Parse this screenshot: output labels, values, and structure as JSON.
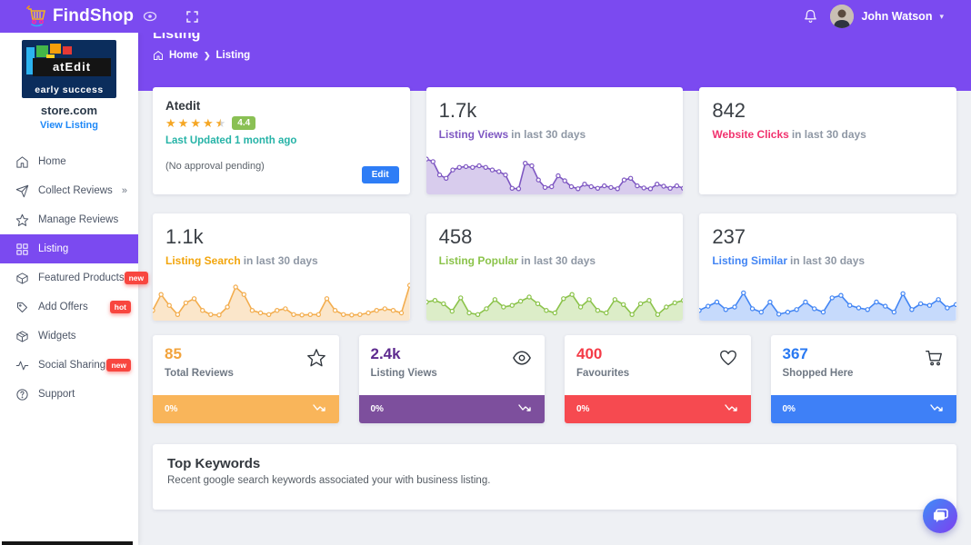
{
  "theme": {
    "primary": "#7b4af0",
    "background": "#eef0f4",
    "badge_red": "#f8463f",
    "link_blue": "#1e88f7",
    "teal": "#26b3a7",
    "rating_green": "#8ac054",
    "star_gold": "#f5a623",
    "edit_blue": "#2e7df6"
  },
  "navbar": {
    "brand": "FindShop",
    "user_name": "John Watson"
  },
  "page": {
    "title": "Listing",
    "breadcrumb_home": "Home",
    "breadcrumb_current": "Listing"
  },
  "sidebar": {
    "logo_text": "atEdit",
    "logo_subtext": "early success",
    "store_name": "store.com",
    "view_listing_label": "View Listing",
    "items": [
      {
        "label": "Home"
      },
      {
        "label": "Collect Reviews",
        "chevron": "»"
      },
      {
        "label": "Manage Reviews"
      },
      {
        "label": "Listing",
        "active": true
      },
      {
        "label": "Featured Products",
        "badge": "new"
      },
      {
        "label": "Add Offers",
        "badge": "hot"
      },
      {
        "label": "Widgets"
      },
      {
        "label": "Social Sharing",
        "badge": "new"
      },
      {
        "label": "Support"
      }
    ]
  },
  "listing_card": {
    "title": "Atedit",
    "rating": "4.4",
    "updated_text": "Last Updated 1 month ago",
    "approval_text": "(No approval pending)",
    "edit_label": "Edit"
  },
  "overview_cards": [
    {
      "value": "1.7k",
      "label": "Listing Views",
      "suffix": "in last 30 days",
      "color": "#7e57c2"
    },
    {
      "value": "842",
      "label": "Website Clicks",
      "suffix": "in last 30 days",
      "color": "#f1326e"
    },
    {
      "value": "1.1k",
      "label": "Listing Search",
      "suffix": "in last 30 days",
      "color": "#f2a50c"
    },
    {
      "value": "458",
      "label": "Listing Popular",
      "suffix": "in last 30 days",
      "color": "#8bc34a"
    },
    {
      "value": "237",
      "label": "Listing Similar",
      "suffix": "in last 30 days",
      "color": "#4285f4"
    }
  ],
  "chart_data": [
    {
      "id": "listing-views-spark",
      "type": "area",
      "title": "Listing Views in last 30 days",
      "color": "#7e57c2",
      "ylim": [
        0,
        10
      ],
      "grid": false,
      "markers": true,
      "values": [
        7.8,
        7.2,
        4,
        3.2,
        5.2,
        5.8,
        6,
        5.8,
        6.2,
        5.8,
        5.2,
        4.8,
        4,
        0.8,
        0.7,
        6.8,
        6.2,
        2.8,
        1,
        1.2,
        3.8,
        2.6,
        1.2,
        0.7,
        1.8,
        1.2,
        0.8,
        1.4,
        1,
        0.7,
        2.8,
        3.2,
        1.4,
        0.9,
        0.7,
        1.8,
        1.3,
        0.8,
        1.4,
        0.8
      ]
    },
    {
      "id": "listing-search-spark",
      "type": "area",
      "title": "Listing Search in last 30 days",
      "color": "#f3ad4e",
      "ylim": [
        0,
        10
      ],
      "grid": false,
      "markers": true,
      "values": [
        1.8,
        5.6,
        3,
        0.8,
        3.6,
        4.6,
        1.8,
        0.8,
        0.7,
        2.6,
        7.4,
        5.6,
        1.8,
        1.2,
        0.8,
        1.8,
        2.2,
        0.8,
        0.7,
        0.8,
        0.8,
        4.6,
        1.8,
        0.8,
        0.7,
        0.8,
        1.2,
        1.8,
        2.2,
        1.8,
        1.2,
        7.8
      ]
    },
    {
      "id": "listing-popular-spark",
      "type": "area",
      "title": "Listing Popular in last 30 days",
      "color": "#8bc34a",
      "ylim": [
        0,
        10
      ],
      "grid": false,
      "markers": true,
      "values": [
        3.8,
        4.2,
        3.4,
        1.6,
        4.8,
        1.2,
        0.8,
        2.2,
        4.4,
        2.6,
        3,
        4,
        5,
        3.4,
        1.8,
        1.2,
        4.6,
        5.6,
        2.6,
        4.4,
        1.8,
        1.2,
        4.4,
        3.2,
        0.8,
        3.4,
        4.2,
        0.8,
        2.6,
        3.6,
        4.2
      ]
    },
    {
      "id": "listing-similar-spark",
      "type": "area",
      "title": "Listing Similar in last 30 days",
      "color": "#4285f4",
      "ylim": [
        0,
        10
      ],
      "grid": false,
      "markers": true,
      "values": [
        1.8,
        2.8,
        3.8,
        2,
        2.6,
        6,
        2.2,
        1.4,
        3.8,
        0.9,
        1.4,
        2,
        3.8,
        2.2,
        1.4,
        4.8,
        5.4,
        3,
        2.4,
        2,
        3.8,
        2.8,
        1.4,
        5.8,
        2,
        3.4,
        3,
        4.4,
        2.4,
        3.2
      ]
    }
  ],
  "mini_cards": [
    {
      "value": "85",
      "label": "Total Reviews",
      "percent": "0%",
      "value_color": "#f2a33c",
      "bar_color": "#f9b55a",
      "icon": "star"
    },
    {
      "value": "2.4k",
      "label": "Listing Views",
      "percent": "0%",
      "value_color": "#5e2b8f",
      "bar_color": "#7d4f9d",
      "icon": "eye"
    },
    {
      "value": "400",
      "label": "Favourites",
      "percent": "0%",
      "value_color": "#f43b47",
      "bar_color": "#f64a50",
      "icon": "heart"
    },
    {
      "value": "367",
      "label": "Shopped Here",
      "percent": "0%",
      "value_color": "#2979f2",
      "bar_color": "#3e80f7",
      "icon": "cart"
    }
  ],
  "keywords_card": {
    "title": "Top Keywords",
    "subtitle": "Recent google search keywords associated your with business listing."
  }
}
